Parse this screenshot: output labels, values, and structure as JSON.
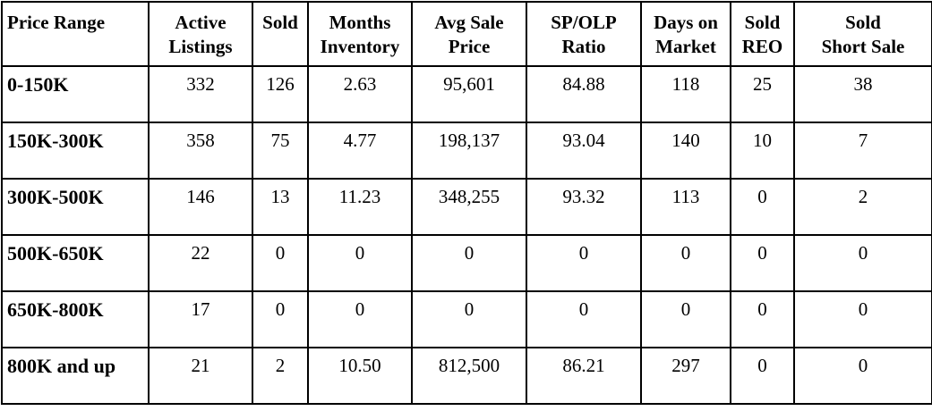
{
  "table": {
    "headers": [
      [
        "Price Range"
      ],
      [
        "Active",
        "Listings"
      ],
      [
        "Sold"
      ],
      [
        "Months",
        "Inventory"
      ],
      [
        "Avg Sale",
        "Price"
      ],
      [
        "SP/OLP",
        "Ratio"
      ],
      [
        "Days on",
        "Market"
      ],
      [
        "Sold",
        "REO"
      ],
      [
        "Sold",
        "Short Sale"
      ]
    ],
    "rows": [
      [
        "0-150K",
        "332",
        "126",
        "2.63",
        "95,601",
        "84.88",
        "118",
        "25",
        "38"
      ],
      [
        "150K-300K",
        "358",
        "75",
        "4.77",
        "198,137",
        "93.04",
        "140",
        "10",
        "7"
      ],
      [
        "300K-500K",
        "146",
        "13",
        "11.23",
        "348,255",
        "93.32",
        "113",
        "0",
        "2"
      ],
      [
        "500K-650K",
        "22",
        "0",
        "0",
        "0",
        "0",
        "0",
        "0",
        "0"
      ],
      [
        "650K-800K",
        "17",
        "0",
        "0",
        "0",
        "0",
        "0",
        "0",
        "0"
      ],
      [
        "800K and up",
        "21",
        "2",
        "10.50",
        "812,500",
        "86.21",
        "297",
        "0",
        "0"
      ]
    ]
  }
}
